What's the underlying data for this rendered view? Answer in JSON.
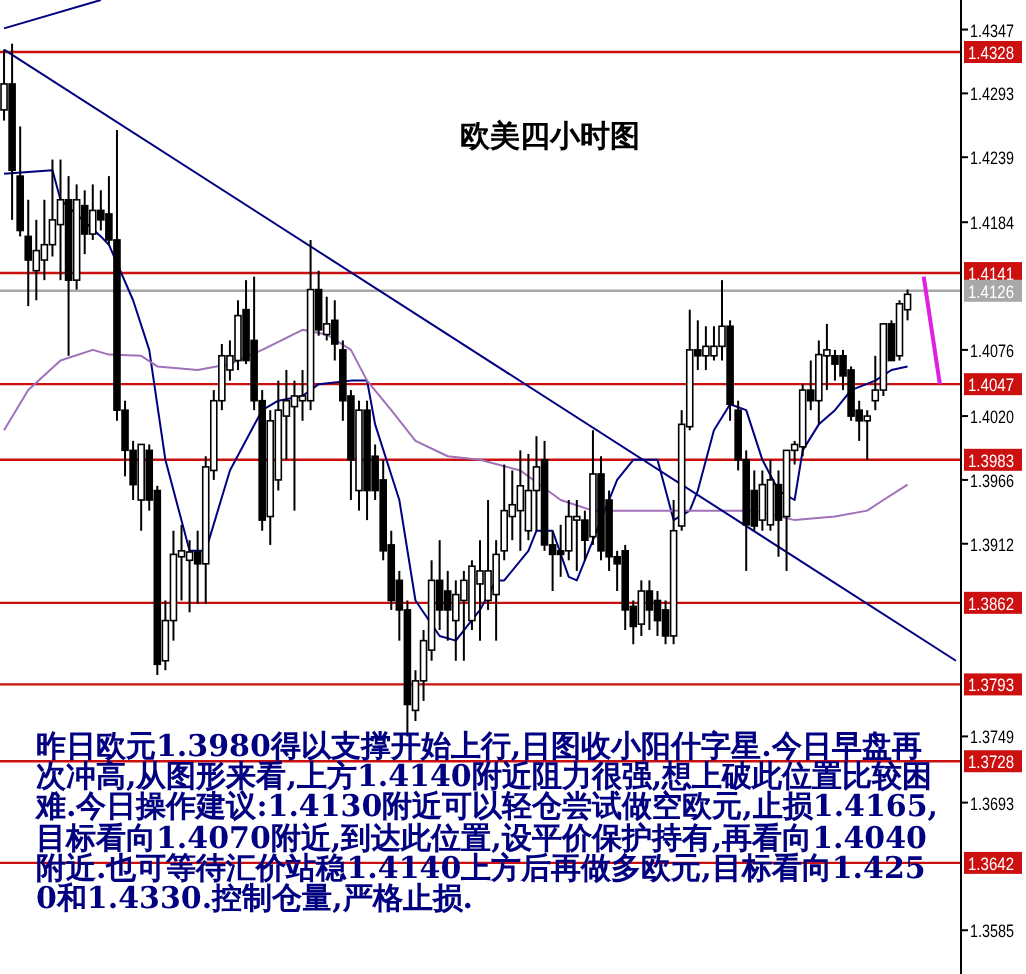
{
  "chart_data": {
    "type": "candlestick",
    "title": "欧美四小时图",
    "categories": [
      null,
      null,
      null,
      null,
      null,
      null,
      null,
      null,
      null,
      null,
      null,
      null,
      null,
      null,
      null,
      null,
      null,
      null,
      null,
      null,
      null,
      null,
      null,
      null,
      null,
      null,
      null,
      null,
      null,
      null,
      null,
      null,
      null,
      null,
      null,
      null,
      null,
      null,
      null,
      null,
      null,
      null,
      null,
      null,
      null,
      null,
      null,
      null,
      null,
      null,
      null,
      null,
      null,
      null,
      null,
      null,
      null,
      null,
      null,
      null,
      null,
      null,
      null,
      null,
      null,
      null,
      null,
      null,
      null,
      null,
      null,
      null,
      null,
      null,
      null,
      null,
      null,
      null,
      null,
      null,
      null,
      null,
      null,
      null,
      null,
      null,
      null,
      null,
      null,
      null,
      null,
      null,
      null,
      null,
      null,
      null,
      null,
      null,
      null,
      null,
      null,
      null,
      null,
      null,
      null,
      null,
      null,
      null,
      null,
      null,
      null,
      null,
      null,
      null,
      null,
      null,
      null,
      null,
      null
    ],
    "ohlc": [
      [
        1.4279,
        1.433,
        1.427,
        1.4301
      ],
      [
        1.4301,
        1.4335,
        1.4186,
        1.4228
      ],
      [
        1.4223,
        1.4265,
        1.4172,
        1.4177
      ],
      [
        1.4172,
        1.4203,
        1.4113,
        1.4152
      ],
      [
        1.4143,
        1.4186,
        1.4118,
        1.416
      ],
      [
        1.4152,
        1.4203,
        1.4135,
        1.4165
      ],
      [
        1.4165,
        1.4237,
        1.4155,
        1.4186
      ],
      [
        1.4182,
        1.4237,
        1.4135,
        1.4203
      ],
      [
        1.4203,
        1.4223,
        1.4071,
        1.4135
      ],
      [
        1.4135,
        1.4216,
        1.4127,
        1.4203
      ],
      [
        1.4198,
        1.4211,
        1.4157,
        1.4174
      ],
      [
        1.4174,
        1.4216,
        1.4169,
        1.4194
      ],
      [
        1.4194,
        1.4211,
        1.4177,
        1.4186
      ],
      [
        1.4191,
        1.4223,
        1.4165,
        1.4169
      ],
      [
        1.4169,
        1.4262,
        1.4016,
        1.4025
      ],
      [
        1.4025,
        1.4033,
        1.3969,
        1.3991
      ],
      [
        1.3991,
        1.3999,
        1.3949,
        1.3962
      ],
      [
        1.3949,
        1.3996,
        1.3923,
        1.3996
      ],
      [
        1.3991,
        1.3996,
        1.394,
        1.3949
      ],
      [
        1.3957,
        1.3961,
        1.3801,
        1.381
      ],
      [
        1.3813,
        1.3864,
        1.3805,
        1.3847
      ],
      [
        1.3847,
        1.3923,
        1.383,
        1.3903
      ],
      [
        1.3901,
        1.3928,
        1.3864,
        1.3906
      ],
      [
        1.3898,
        1.3915,
        1.3854,
        1.3905
      ],
      [
        1.3905,
        1.3923,
        1.3861,
        1.3895
      ],
      [
        1.3895,
        1.3986,
        1.3861,
        1.3977
      ],
      [
        1.3974,
        1.4042,
        1.3966,
        1.4033
      ],
      [
        1.4033,
        1.4081,
        1.4025,
        1.4071
      ],
      [
        1.4059,
        1.4084,
        1.405,
        1.4071
      ],
      [
        1.4067,
        1.4118,
        1.4059,
        1.4105
      ],
      [
        1.411,
        1.4135,
        1.4064,
        1.4067
      ],
      [
        1.4084,
        1.4138,
        1.4025,
        1.4033
      ],
      [
        1.4033,
        1.4042,
        1.3923,
        1.3932
      ],
      [
        1.3935,
        1.4025,
        1.3911,
        1.4016
      ],
      [
        1.3966,
        1.405,
        1.3957,
        1.4025
      ],
      [
        1.402,
        1.4059,
        1.3983,
        1.4033
      ],
      [
        1.4028,
        1.405,
        1.394,
        1.4037
      ],
      [
        1.4033,
        1.4059,
        1.4016,
        1.4037
      ],
      [
        1.4033,
        1.4169,
        1.4025,
        1.4127
      ],
      [
        1.4127,
        1.4143,
        1.4088,
        1.4093
      ],
      [
        1.4089,
        1.4121,
        1.4084,
        1.4098
      ],
      [
        1.4101,
        1.4118,
        1.4067,
        1.4081
      ],
      [
        1.4076,
        1.4084,
        1.4016,
        1.4033
      ],
      [
        1.4037,
        1.4042,
        1.3949,
        1.3983
      ],
      [
        1.3957,
        1.4033,
        1.394,
        1.4025
      ],
      [
        1.4025,
        1.4033,
        1.3932,
        1.3957
      ],
      [
        1.3986,
        1.3996,
        1.3949,
        1.3957
      ],
      [
        1.3966,
        1.3983,
        1.3898,
        1.3906
      ],
      [
        1.3911,
        1.3923,
        1.3856,
        1.3864
      ],
      [
        1.3881,
        1.3889,
        1.383,
        1.3856
      ],
      [
        1.3856,
        1.3864,
        1.3749,
        1.3776
      ],
      [
        1.3771,
        1.3805,
        1.3762,
        1.3796
      ],
      [
        1.3796,
        1.3839,
        1.3779,
        1.383
      ],
      [
        1.3822,
        1.3898,
        1.3813,
        1.3881
      ],
      [
        1.3881,
        1.3915,
        1.3839,
        1.3856
      ],
      [
        1.3872,
        1.3889,
        1.383,
        1.3856
      ],
      [
        1.3847,
        1.3881,
        1.3813,
        1.3869
      ],
      [
        1.3864,
        1.3889,
        1.3813,
        1.3881
      ],
      [
        1.3847,
        1.3898,
        1.3839,
        1.3893
      ],
      [
        1.3878,
        1.3915,
        1.383,
        1.3889
      ],
      [
        1.3864,
        1.3949,
        1.3856,
        1.3889
      ],
      [
        1.3869,
        1.3915,
        1.383,
        1.3903
      ],
      [
        1.3906,
        1.3979,
        1.3898,
        1.394
      ],
      [
        1.3935,
        1.3974,
        1.3915,
        1.3945
      ],
      [
        1.394,
        1.3991,
        1.3906,
        1.3961
      ],
      [
        1.3923,
        1.3988,
        1.3915,
        1.3957
      ],
      [
        1.3957,
        1.4003,
        1.3923,
        1.3977
      ],
      [
        1.3983,
        1.3999,
        1.3906,
        1.3911
      ],
      [
        1.3911,
        1.3923,
        1.3872,
        1.3903
      ],
      [
        1.3906,
        1.3928,
        1.3884,
        1.3903
      ],
      [
        1.3906,
        1.3949,
        1.3898,
        1.3935
      ],
      [
        1.3932,
        1.3949,
        1.3889,
        1.3935
      ],
      [
        1.3932,
        1.394,
        1.3898,
        1.3915
      ],
      [
        1.3918,
        1.4008,
        1.3911,
        1.3971
      ],
      [
        1.3971,
        1.3986,
        1.3898,
        1.3906
      ],
      [
        1.3949,
        1.3957,
        1.3889,
        1.3901
      ],
      [
        1.3901,
        1.3906,
        1.3872,
        1.3895
      ],
      [
        1.3906,
        1.3911,
        1.3839,
        1.3856
      ],
      [
        1.3859,
        1.3864,
        1.3827,
        1.3842
      ],
      [
        1.3844,
        1.3881,
        1.3834,
        1.3872
      ],
      [
        1.3872,
        1.3881,
        1.3839,
        1.3856
      ],
      [
        1.3864,
        1.3872,
        1.3834,
        1.3847
      ],
      [
        1.3856,
        1.3864,
        1.3827,
        1.3834
      ],
      [
        1.3834,
        1.3949,
        1.3827,
        1.3923
      ],
      [
        1.3927,
        1.4025,
        1.3923,
        1.4013
      ],
      [
        1.4011,
        1.411,
        1.4008,
        1.4076
      ],
      [
        1.4076,
        1.4101,
        1.4059,
        1.4071
      ],
      [
        1.4071,
        1.4096,
        1.4059,
        1.4079
      ],
      [
        1.4071,
        1.4096,
        1.4067,
        1.4079
      ],
      [
        1.4079,
        1.4135,
        1.4067,
        1.4096
      ],
      [
        1.4096,
        1.4101,
        1.4016,
        1.403
      ],
      [
        1.4025,
        1.4033,
        1.3974,
        1.3983
      ],
      [
        1.3983,
        1.3991,
        1.3889,
        1.3928
      ],
      [
        1.3957,
        1.3974,
        1.3923,
        1.3927
      ],
      [
        1.3932,
        1.3974,
        1.3923,
        1.3962
      ],
      [
        1.3928,
        1.3983,
        1.3923,
        1.3966
      ],
      [
        1.3962,
        1.3974,
        1.3901,
        1.3932
      ],
      [
        1.3935,
        1.3991,
        1.3889,
        1.3991
      ],
      [
        1.3991,
        1.3999,
        1.3979,
        1.3996
      ],
      [
        1.3994,
        1.4047,
        1.3986,
        1.4042
      ],
      [
        1.4042,
        1.4067,
        1.4025,
        1.4033
      ],
      [
        1.4033,
        1.4084,
        1.4013,
        1.4072
      ],
      [
        1.4071,
        1.4098,
        1.4042,
        1.4076
      ],
      [
        1.4071,
        1.4076,
        1.405,
        1.4064
      ],
      [
        1.4071,
        1.4076,
        1.4042,
        1.4054
      ],
      [
        1.4059,
        1.4062,
        1.4016,
        1.402
      ],
      [
        1.4025,
        1.4033,
        1.3999,
        1.4016
      ],
      [
        1.4016,
        1.4025,
        1.3983,
        1.402
      ],
      [
        1.4033,
        1.4071,
        1.4025,
        1.4042
      ],
      [
        1.4042,
        1.4098,
        1.4037,
        1.4098
      ],
      [
        1.4098,
        1.4101,
        1.4067,
        1.4067
      ],
      [
        1.4071,
        1.4118,
        1.4067,
        1.4115
      ],
      [
        1.411,
        1.4127,
        1.4101,
        1.4123
      ],
      null,
      null,
      null,
      null,
      null,
      null
    ],
    "series": [
      {
        "type": "line",
        "color": "#000080",
        "values": [
          1.4225,
          null,
          null,
          null,
          null,
          null,
          1.4228,
          1.4203,
          null,
          null,
          null,
          null,
          1.4172,
          1.4165,
          null,
          null,
          1.4118,
          null,
          1.4076,
          null,
          1.3983,
          null,
          null,
          1.3906,
          null,
          1.3906,
          null,
          null,
          1.3974,
          null,
          null,
          null,
          1.4025,
          null,
          1.4033,
          null,
          null,
          1.4037,
          null,
          1.4047,
          null,
          null,
          null,
          1.405,
          null,
          1.405,
          1.4013,
          null,
          null,
          1.3949,
          null,
          1.3864,
          null,
          null,
          1.3834,
          null,
          1.383,
          null,
          null,
          1.3856,
          null,
          1.3881,
          1.3881,
          null,
          null,
          1.3906,
          1.3923,
          null,
          1.3923,
          null,
          1.3884,
          1.3881,
          null,
          null,
          null,
          null,
          1.3966,
          null,
          1.3983,
          null,
          null,
          1.3983,
          null,
          1.3932,
          null,
          1.394,
          1.3957,
          null,
          1.4008,
          null,
          1.403,
          null,
          1.4025,
          null,
          1.3983,
          null,
          1.3957,
          null,
          1.3949,
          1.3991,
          null,
          1.4013,
          null,
          1.4025,
          null,
          1.4042,
          null,
          null,
          1.405,
          null,
          1.4059,
          null,
          1.4062,
          null,
          null,
          null,
          null,
          null,
          null
        ]
      },
      {
        "type": "line",
        "color": "#a070b8",
        "values": [
          1.4008,
          null,
          null,
          1.4042,
          null,
          null,
          null,
          1.4067,
          null,
          null,
          null,
          1.4076,
          null,
          1.4072,
          null,
          null,
          null,
          1.4071,
          null,
          1.4062,
          null,
          null,
          null,
          null,
          1.4059,
          null,
          null,
          null,
          1.4064,
          null,
          null,
          null,
          1.4076,
          null,
          null,
          null,
          null,
          1.4093,
          null,
          null,
          1.4089,
          null,
          null,
          1.4076,
          null,
          1.405,
          null,
          null,
          1.4025,
          null,
          null,
          1.3999,
          null,
          null,
          null,
          1.3986,
          null,
          null,
          null,
          1.3983,
          null,
          null,
          null,
          null,
          1.3974,
          null,
          null,
          null,
          null,
          1.3949,
          null,
          null,
          null,
          1.394,
          null,
          null,
          null,
          null,
          1.394,
          null,
          null,
          null,
          null,
          1.394,
          null,
          null,
          null,
          null,
          1.394,
          null,
          null,
          null,
          null,
          1.394,
          null,
          null,
          null,
          null,
          1.3932,
          null,
          null,
          null,
          null,
          1.3935,
          null,
          null,
          null,
          1.394,
          null,
          1.3949,
          null,
          null,
          1.3962,
          null,
          null,
          null,
          null,
          null,
          null
        ]
      },
      {
        "type": "line",
        "color": "#000080",
        "values": [
          1.433,
          null,
          null,
          null,
          null,
          null,
          null,
          null,
          null,
          null,
          null,
          null,
          null,
          null,
          null,
          null,
          null,
          null,
          null,
          null,
          null,
          null,
          null,
          null,
          null,
          null,
          null,
          null,
          null,
          null,
          null,
          null,
          null,
          null,
          null,
          null,
          null,
          null,
          null,
          null,
          null,
          null,
          null,
          null,
          null,
          null,
          null,
          null,
          null,
          null,
          null,
          null,
          null,
          null,
          null,
          null,
          null,
          null,
          null,
          null,
          null,
          null,
          null,
          null,
          null,
          null,
          null,
          null,
          null,
          null,
          null,
          null,
          null,
          null,
          null,
          null,
          null,
          null,
          null,
          null,
          null,
          null,
          null,
          null,
          null,
          null,
          null,
          null,
          null,
          null,
          null,
          null,
          null,
          null,
          null,
          null,
          null,
          null,
          null,
          null,
          null,
          null,
          null,
          null,
          null,
          null,
          null,
          null,
          null,
          null,
          null,
          null,
          null,
          null,
          null,
          null,
          null,
          null,
          1.3813
        ]
      },
      {
        "type": "line",
        "color": "#000080",
        "values": [
          1.4348,
          null,
          null,
          null,
          null,
          null,
          null,
          null,
          null,
          null,
          null,
          null,
          1.4372,
          null,
          null,
          null,
          null,
          null,
          null,
          null,
          null,
          null,
          null,
          null,
          null,
          null,
          null,
          null,
          null,
          null,
          null,
          null,
          null,
          null,
          null,
          null,
          null,
          null,
          null,
          null,
          null,
          null,
          null,
          null,
          null,
          null,
          null,
          null,
          null,
          null,
          null,
          null,
          null,
          null,
          null,
          null,
          null,
          null,
          null,
          null,
          null,
          null,
          null,
          null,
          null,
          null,
          null,
          null,
          null,
          null,
          null,
          null,
          null,
          null,
          null,
          null,
          null,
          null,
          null,
          null,
          null,
          null,
          null,
          null,
          null,
          null,
          null,
          null,
          null,
          null,
          null,
          null,
          null,
          null,
          null,
          null,
          null,
          null,
          null,
          null,
          null,
          null,
          null,
          null,
          null,
          null,
          null,
          null,
          null,
          null,
          null,
          null,
          null,
          null,
          null,
          null,
          null,
          null,
          null
        ]
      },
      {
        "type": "line",
        "color": "#e020e0",
        "values": [
          null,
          null,
          null,
          null,
          null,
          null,
          null,
          null,
          null,
          null,
          null,
          null,
          null,
          null,
          null,
          null,
          null,
          null,
          null,
          null,
          null,
          null,
          null,
          null,
          null,
          null,
          null,
          null,
          null,
          null,
          null,
          null,
          null,
          null,
          null,
          null,
          null,
          null,
          null,
          null,
          null,
          null,
          null,
          null,
          null,
          null,
          null,
          null,
          null,
          null,
          null,
          null,
          null,
          null,
          null,
          null,
          null,
          null,
          null,
          null,
          null,
          null,
          null,
          null,
          null,
          null,
          null,
          null,
          null,
          null,
          null,
          null,
          null,
          null,
          null,
          null,
          null,
          null,
          null,
          null,
          null,
          null,
          null,
          null,
          null,
          null,
          null,
          null,
          null,
          null,
          null,
          null,
          null,
          null,
          null,
          null,
          null,
          null,
          null,
          null,
          null,
          null,
          null,
          null,
          null,
          null,
          null,
          null,
          null,
          null,
          null,
          null,
          null,
          null,
          1.4138,
          null,
          1.4047,
          null,
          null
        ]
      }
    ],
    "ylim": [
      1.3548,
      1.4372
    ],
    "yticks": [
      1.4347,
      1.4293,
      1.4239,
      1.4184,
      1.4076,
      {
        "value": 1.402,
        "label": "1.4020"
      },
      1.3966,
      1.3912,
      1.3749,
      1.3693,
      1.3585
    ],
    "tick_labels": "y",
    "ref_lines": [
      {
        "axis": "y",
        "value": 1.4328,
        "label": "1.4328",
        "color": "#cc1010"
      },
      {
        "axis": "y",
        "value": 1.4141,
        "label": "1.4141",
        "color": "#cc1010"
      },
      {
        "axis": "y",
        "value": 1.4047,
        "label": "1.4047",
        "color": "#cc1010"
      },
      {
        "axis": "y",
        "value": 1.3983,
        "label": "1.3983",
        "color": "#cc1010"
      },
      {
        "axis": "y",
        "value": 1.3862,
        "label": "1.3862",
        "color": "#cc1010"
      },
      {
        "axis": "y",
        "value": 1.3793,
        "label": "1.3793",
        "color": "#cc1010"
      },
      {
        "axis": "y",
        "value": 1.3728,
        "label": "1.3728",
        "color": "#cc1010"
      },
      {
        "axis": "y",
        "value": 1.3642,
        "label": "1.3642",
        "color": "#cc1010"
      },
      {
        "axis": "y",
        "value": 1.4126,
        "label": "1.4126",
        "color": "#a8a8a8"
      }
    ],
    "annotations": [
      "昨日欧元1.3980得以支撑开始上行,日图收小阳什字星.今日早盘再次冲高,从图形来看,上方1.4140附近阻力很强,想上破此位置比较困难.今日操作建议:1.4130附近可以轻仓尝试做空欧元,止损1.4165,目标看向1.4070附近,到达此位置,设平价保护持有,再看向1.4040附近.也可等待汇价站稳1.4140上方后再做多欧元,目标看向1.4250和1.4330.控制仓量,严格止损."
    ]
  }
}
